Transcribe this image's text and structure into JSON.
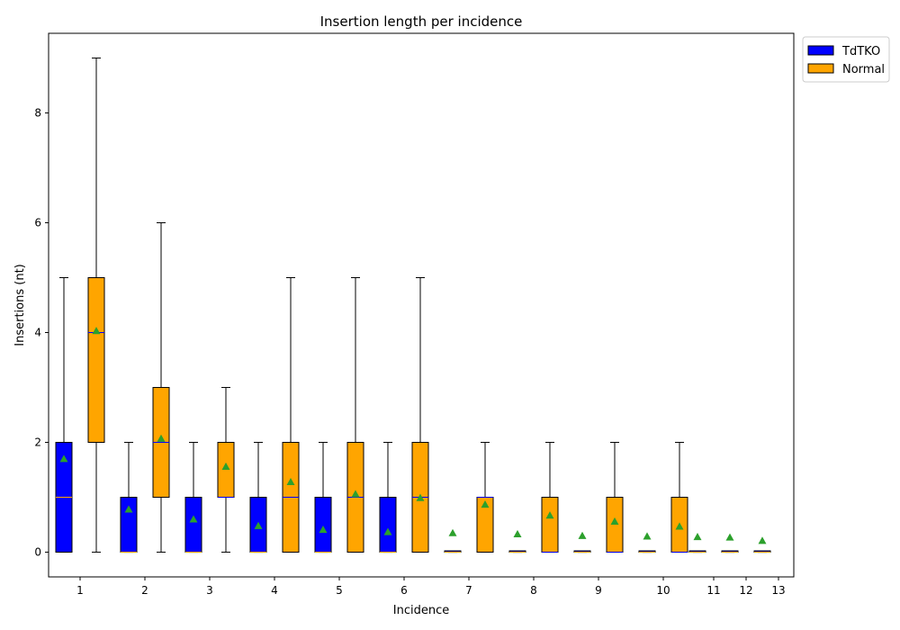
{
  "chart_data": {
    "type": "box",
    "title": "Insertion length per incidence",
    "xlabel": "Incidence",
    "ylabel": "Insertions (nt)",
    "ylim": [
      -0.45,
      9.45
    ],
    "yticks": [
      0,
      2,
      4,
      6,
      8
    ],
    "categories": [
      "1",
      "2",
      "3",
      "4",
      "5",
      "6",
      "7",
      "8",
      "9",
      "10",
      "11",
      "12",
      "13"
    ],
    "legend": {
      "position": "upper-right-outside"
    },
    "series": [
      {
        "name": "TdTKO",
        "color": "#0000ff",
        "median_color": "#ffa500",
        "boxes": [
          {
            "category": "1",
            "low": 0,
            "q1": 0,
            "median": 1,
            "q3": 2,
            "high": 5,
            "mean": 1.7
          },
          {
            "category": "2",
            "low": 0,
            "q1": 0,
            "median": 0,
            "q3": 1,
            "high": 2,
            "mean": 0.78
          },
          {
            "category": "3",
            "low": 0,
            "q1": 0,
            "median": 0,
            "q3": 1,
            "high": 2,
            "mean": 0.6
          },
          {
            "category": "4",
            "low": 0,
            "q1": 0,
            "median": 0,
            "q3": 1,
            "high": 2,
            "mean": 0.48
          },
          {
            "category": "5",
            "low": 0,
            "q1": 0,
            "median": 0,
            "q3": 1,
            "high": 2,
            "mean": 0.41
          },
          {
            "category": "6",
            "low": 0,
            "q1": 0,
            "median": 0,
            "q3": 1,
            "high": 2,
            "mean": 0.37
          },
          {
            "category": "7",
            "low": 0,
            "q1": 0,
            "median": 0,
            "q3": 0,
            "high": 0,
            "mean": 0.35
          },
          {
            "category": "8",
            "low": 0,
            "q1": 0,
            "median": 0,
            "q3": 0,
            "high": 0,
            "mean": 0.33
          },
          {
            "category": "9",
            "low": 0,
            "q1": 0,
            "median": 0,
            "q3": 0,
            "high": 0,
            "mean": 0.3
          },
          {
            "category": "10",
            "low": 0,
            "q1": 0,
            "median": 0,
            "q3": 0,
            "high": 0,
            "mean": 0.29
          },
          {
            "category": "11",
            "low": 0,
            "q1": 0,
            "median": 0,
            "q3": 0,
            "high": 0,
            "mean": 0.28
          },
          {
            "category": "12",
            "low": 0,
            "q1": 0,
            "median": 0,
            "q3": 0,
            "high": 0,
            "mean": 0.27
          },
          {
            "category": "13",
            "low": 0,
            "q1": 0,
            "median": 0,
            "q3": 0,
            "high": 0,
            "mean": 0.21
          }
        ]
      },
      {
        "name": "Normal",
        "color": "#ffa500",
        "median_color": "#0000ff",
        "boxes": [
          {
            "category": "1",
            "low": 0,
            "q1": 2,
            "median": 4,
            "q3": 5,
            "high": 9,
            "mean": 4.03
          },
          {
            "category": "2",
            "low": 0,
            "q1": 1,
            "median": 2,
            "q3": 3,
            "high": 6,
            "mean": 2.07
          },
          {
            "category": "3",
            "low": 0,
            "q1": 1,
            "median": 1,
            "q3": 2,
            "high": 3,
            "mean": 1.56
          },
          {
            "category": "4",
            "low": 0,
            "q1": 0,
            "median": 1,
            "q3": 2,
            "high": 5,
            "mean": 1.28
          },
          {
            "category": "5",
            "low": 0,
            "q1": 0,
            "median": 1,
            "q3": 2,
            "high": 5,
            "mean": 1.06
          },
          {
            "category": "6",
            "low": 0,
            "q1": 0,
            "median": 1,
            "q3": 2,
            "high": 5,
            "mean": 0.99
          },
          {
            "category": "7",
            "low": 0,
            "q1": 0,
            "median": 1,
            "q3": 1,
            "high": 2,
            "mean": 0.87
          },
          {
            "category": "8",
            "low": 0,
            "q1": 0,
            "median": 0,
            "q3": 1,
            "high": 2,
            "mean": 0.67
          },
          {
            "category": "9",
            "low": 0,
            "q1": 0,
            "median": 0,
            "q3": 1,
            "high": 2,
            "mean": 0.56
          },
          {
            "category": "10",
            "low": 0,
            "q1": 0,
            "median": 0,
            "q3": 1,
            "high": 2,
            "mean": 0.47
          }
        ]
      }
    ],
    "mean_marker": {
      "shape": "triangle",
      "color": "#2ca02c"
    }
  }
}
